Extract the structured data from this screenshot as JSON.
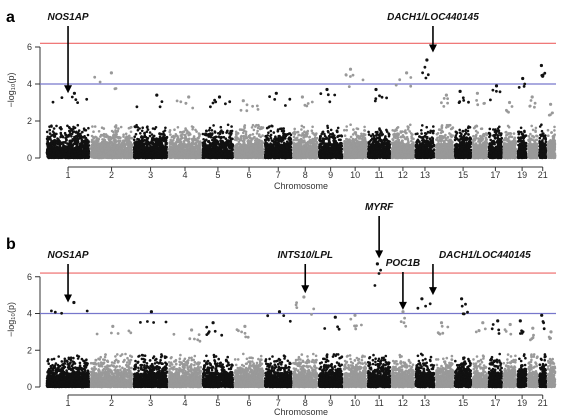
{
  "chart_data": [
    {
      "type": "scatter",
      "subtype": "manhattan",
      "panel": "a",
      "xlabel": "Chromosome",
      "ylabel": "−log₁₀(p)",
      "ylim": [
        0,
        8
      ],
      "yticks": [
        0,
        2,
        4,
        6
      ],
      "x_tick_labels": [
        "1",
        "2",
        "3",
        "4",
        "5",
        "6",
        "7",
        "8",
        "9",
        "10",
        "11",
        "12",
        "13",
        "15",
        "17",
        "19",
        "21"
      ],
      "chromosomes": [
        "1",
        "2",
        "3",
        "4",
        "5",
        "6",
        "7",
        "8",
        "9",
        "10",
        "11",
        "12",
        "13",
        "14",
        "15",
        "16",
        "17",
        "18",
        "19",
        "20",
        "21",
        "22"
      ],
      "point_colors": [
        "#111111",
        "#999999"
      ],
      "threshold_lines": [
        {
          "value": 6.2,
          "color": "#ee6666"
        },
        {
          "value": 4.0,
          "color": "#7777cc"
        }
      ],
      "chromosome_max_neglog10p": [
        3.5,
        4.6,
        3.4,
        3.3,
        3.3,
        3.1,
        3.5,
        3.3,
        3.7,
        4.8,
        3.7,
        4.6,
        5.3,
        3.4,
        3.6,
        3.5,
        3.9,
        3.0,
        4.3,
        3.3,
        5.0,
        2.9
      ],
      "annotations": [
        {
          "label": "NOS1AP",
          "chromosome": "1",
          "arrow_to": 3.5
        },
        {
          "label": "DACH1/LOC440145",
          "chromosome": "13",
          "arrow_to": 5.7
        }
      ]
    },
    {
      "type": "scatter",
      "subtype": "manhattan",
      "panel": "b",
      "xlabel": "Chromosome",
      "ylabel": "−log₁₀(p)",
      "ylim": [
        0,
        8
      ],
      "yticks": [
        0,
        2,
        4,
        6
      ],
      "x_tick_labels": [
        "1",
        "2",
        "3",
        "4",
        "5",
        "6",
        "7",
        "8",
        "9",
        "10",
        "11",
        "12",
        "13",
        "15",
        "17",
        "19",
        "21"
      ],
      "chromosomes": [
        "1",
        "2",
        "3",
        "4",
        "5",
        "6",
        "7",
        "8",
        "9",
        "10",
        "11",
        "12",
        "13",
        "14",
        "15",
        "16",
        "17",
        "18",
        "19",
        "20",
        "21",
        "22"
      ],
      "point_colors": [
        "#111111",
        "#999999"
      ],
      "threshold_lines": [
        {
          "value": 6.2,
          "color": "#ee6666"
        },
        {
          "value": 4.0,
          "color": "#7777cc"
        }
      ],
      "chromosome_max_neglog10p": [
        4.6,
        3.3,
        4.1,
        3.1,
        3.5,
        3.3,
        4.1,
        4.9,
        3.8,
        3.9,
        6.7,
        4.1,
        4.8,
        3.5,
        4.8,
        3.5,
        3.6,
        3.4,
        3.6,
        3.2,
        3.9,
        3.0
      ],
      "annotations": [
        {
          "label": "NOS1AP",
          "chromosome": "1",
          "arrow_to": 4.6
        },
        {
          "label": "INTS10/LPL",
          "chromosome": "8",
          "arrow_to": 5.1
        },
        {
          "label": "MYRF",
          "chromosome": "11",
          "arrow_to": 7.0
        },
        {
          "label": "POC1B",
          "chromosome": "12",
          "arrow_to": 4.2
        },
        {
          "label": "DACH1/LOC440145",
          "chromosome": "13",
          "arrow_to": 5.0
        }
      ]
    }
  ]
}
